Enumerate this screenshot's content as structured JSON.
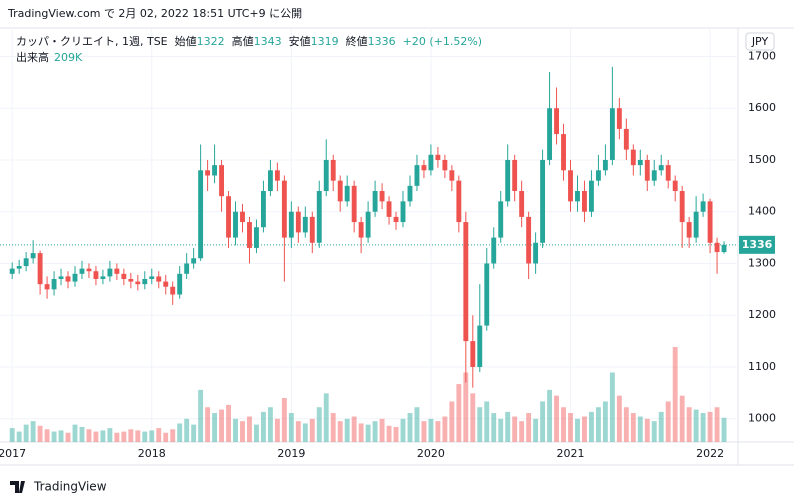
{
  "published": "TradingView.com で 2月 02, 2022 18:51 UTC+9 に公開",
  "chart_data": {
    "type": "candlestick",
    "symbol": "カッパ・クリエイト, 1週, TSE",
    "legend": {
      "open_label": "始値",
      "open": 1322,
      "high_label": "高値",
      "high": 1343,
      "low_label": "安値",
      "low": 1319,
      "close_label": "終値",
      "close": 1336,
      "change": "+20 (+1.52%)",
      "volume_label": "出来高",
      "volume": "209K"
    },
    "currency": "JPY",
    "up_color": "#26a69a",
    "down_color": "#ef5350",
    "grid": true,
    "ylim": [
      955,
      1755
    ],
    "yticks": [
      1000,
      1100,
      1200,
      1300,
      1400,
      1500,
      1600,
      1700
    ],
    "xlim": [
      2016.97,
      2022.2
    ],
    "xticks": [
      2017,
      2018,
      2019,
      2020,
      2021,
      2022
    ],
    "x": [
      2017.0,
      2017.05,
      2017.1,
      2017.15,
      2017.2,
      2017.25,
      2017.3,
      2017.35,
      2017.4,
      2017.45,
      2017.5,
      2017.55,
      2017.6,
      2017.65,
      2017.7,
      2017.75,
      2017.8,
      2017.85,
      2017.9,
      2017.95,
      2018.0,
      2018.05,
      2018.1,
      2018.15,
      2018.2,
      2018.25,
      2018.3,
      2018.35,
      2018.4,
      2018.45,
      2018.5,
      2018.55,
      2018.6,
      2018.65,
      2018.7,
      2018.75,
      2018.8,
      2018.85,
      2018.9,
      2018.95,
      2019.0,
      2019.05,
      2019.1,
      2019.15,
      2019.2,
      2019.25,
      2019.3,
      2019.35,
      2019.4,
      2019.45,
      2019.5,
      2019.55,
      2019.6,
      2019.65,
      2019.7,
      2019.75,
      2019.8,
      2019.85,
      2019.9,
      2019.95,
      2020.0,
      2020.05,
      2020.1,
      2020.15,
      2020.2,
      2020.25,
      2020.3,
      2020.35,
      2020.4,
      2020.45,
      2020.5,
      2020.55,
      2020.6,
      2020.65,
      2020.7,
      2020.75,
      2020.8,
      2020.85,
      2020.9,
      2020.95,
      2021.0,
      2021.05,
      2021.1,
      2021.15,
      2021.2,
      2021.25,
      2021.3,
      2021.35,
      2021.4,
      2021.45,
      2021.5,
      2021.55,
      2021.6,
      2021.65,
      2021.7,
      2021.75,
      2021.8,
      2021.85,
      2021.9,
      2021.95,
      2022.0,
      2022.05,
      2022.1
    ],
    "open": [
      1280,
      1290,
      1295,
      1310,
      1320,
      1260,
      1250,
      1270,
      1275,
      1265,
      1280,
      1290,
      1285,
      1270,
      1275,
      1290,
      1280,
      1270,
      1265,
      1260,
      1270,
      1275,
      1265,
      1255,
      1240,
      1280,
      1300,
      1310,
      1480,
      1470,
      1490,
      1430,
      1350,
      1400,
      1380,
      1330,
      1370,
      1440,
      1480,
      1460,
      1350,
      1400,
      1360,
      1390,
      1340,
      1440,
      1500,
      1460,
      1420,
      1450,
      1380,
      1350,
      1400,
      1440,
      1420,
      1390,
      1380,
      1420,
      1450,
      1490,
      1480,
      1510,
      1500,
      1480,
      1460,
      1380,
      1150,
      1100,
      1180,
      1300,
      1350,
      1420,
      1500,
      1440,
      1390,
      1300,
      1340,
      1500,
      1600,
      1550,
      1480,
      1420,
      1440,
      1400,
      1460,
      1480,
      1500,
      1600,
      1560,
      1520,
      1490,
      1500,
      1460,
      1480,
      1490,
      1460,
      1440,
      1380,
      1350,
      1400,
      1420,
      1340,
      1322
    ],
    "high": [
      1302,
      1307,
      1322,
      1345,
      1325,
      1275,
      1285,
      1290,
      1285,
      1295,
      1305,
      1300,
      1295,
      1288,
      1305,
      1300,
      1290,
      1282,
      1278,
      1285,
      1290,
      1285,
      1278,
      1265,
      1295,
      1320,
      1330,
      1530,
      1500,
      1530,
      1500,
      1440,
      1420,
      1415,
      1390,
      1385,
      1460,
      1500,
      1495,
      1470,
      1420,
      1410,
      1410,
      1400,
      1460,
      1540,
      1510,
      1470,
      1470,
      1460,
      1390,
      1420,
      1460,
      1455,
      1430,
      1400,
      1440,
      1470,
      1510,
      1500,
      1530,
      1525,
      1510,
      1490,
      1470,
      1400,
      1200,
      1260,
      1330,
      1370,
      1440,
      1530,
      1510,
      1460,
      1400,
      1360,
      1520,
      1670,
      1640,
      1570,
      1500,
      1470,
      1460,
      1480,
      1510,
      1530,
      1680,
      1620,
      1580,
      1530,
      1520,
      1510,
      1500,
      1510,
      1500,
      1470,
      1450,
      1390,
      1430,
      1435,
      1425,
      1350,
      1343
    ],
    "low": [
      1270,
      1280,
      1285,
      1300,
      1240,
      1232,
      1238,
      1258,
      1252,
      1255,
      1270,
      1272,
      1258,
      1260,
      1265,
      1268,
      1258,
      1252,
      1248,
      1250,
      1260,
      1252,
      1240,
      1220,
      1232,
      1270,
      1290,
      1305,
      1440,
      1455,
      1400,
      1330,
      1335,
      1360,
      1300,
      1320,
      1360,
      1430,
      1440,
      1265,
      1330,
      1340,
      1350,
      1320,
      1330,
      1430,
      1440,
      1400,
      1410,
      1360,
      1320,
      1340,
      1390,
      1405,
      1375,
      1365,
      1370,
      1410,
      1440,
      1465,
      1470,
      1485,
      1465,
      1440,
      1360,
      1070,
      1060,
      1090,
      1170,
      1290,
      1340,
      1410,
      1420,
      1370,
      1270,
      1280,
      1330,
      1490,
      1530,
      1460,
      1400,
      1400,
      1380,
      1390,
      1450,
      1470,
      1490,
      1540,
      1500,
      1470,
      1470,
      1440,
      1450,
      1470,
      1445,
      1420,
      1330,
      1330,
      1340,
      1390,
      1320,
      1280,
      1319
    ],
    "close": [
      1290,
      1295,
      1310,
      1320,
      1260,
      1250,
      1270,
      1275,
      1265,
      1280,
      1290,
      1285,
      1270,
      1275,
      1290,
      1280,
      1270,
      1265,
      1260,
      1270,
      1275,
      1265,
      1255,
      1240,
      1280,
      1300,
      1310,
      1480,
      1470,
      1490,
      1430,
      1350,
      1400,
      1380,
      1330,
      1370,
      1440,
      1480,
      1460,
      1350,
      1400,
      1360,
      1390,
      1340,
      1440,
      1500,
      1460,
      1420,
      1450,
      1380,
      1350,
      1400,
      1440,
      1420,
      1390,
      1380,
      1420,
      1450,
      1490,
      1480,
      1510,
      1500,
      1480,
      1460,
      1380,
      1150,
      1100,
      1180,
      1300,
      1350,
      1420,
      1500,
      1440,
      1390,
      1300,
      1340,
      1500,
      1600,
      1550,
      1480,
      1420,
      1440,
      1400,
      1460,
      1480,
      1500,
      1600,
      1560,
      1520,
      1490,
      1500,
      1460,
      1480,
      1490,
      1460,
      1440,
      1380,
      1350,
      1400,
      1420,
      1340,
      1322,
      1336
    ],
    "volumes": [
      120,
      90,
      150,
      180,
      140,
      110,
      90,
      100,
      80,
      150,
      130,
      110,
      90,
      100,
      120,
      80,
      90,
      110,
      100,
      90,
      100,
      120,
      80,
      110,
      160,
      200,
      150,
      450,
      300,
      250,
      280,
      320,
      200,
      180,
      220,
      150,
      260,
      300,
      200,
      380,
      250,
      180,
      160,
      200,
      300,
      420,
      250,
      180,
      200,
      220,
      160,
      150,
      180,
      200,
      140,
      130,
      200,
      250,
      300,
      180,
      200,
      180,
      220,
      350,
      500,
      600,
      420,
      300,
      350,
      250,
      200,
      260,
      220,
      180,
      250,
      200,
      350,
      450,
      400,
      300,
      250,
      200,
      220,
      260,
      300,
      350,
      600,
      400,
      300,
      250,
      220,
      200,
      180,
      260,
      350,
      820,
      400,
      300,
      280,
      250,
      260,
      300,
      209
    ]
  }
}
